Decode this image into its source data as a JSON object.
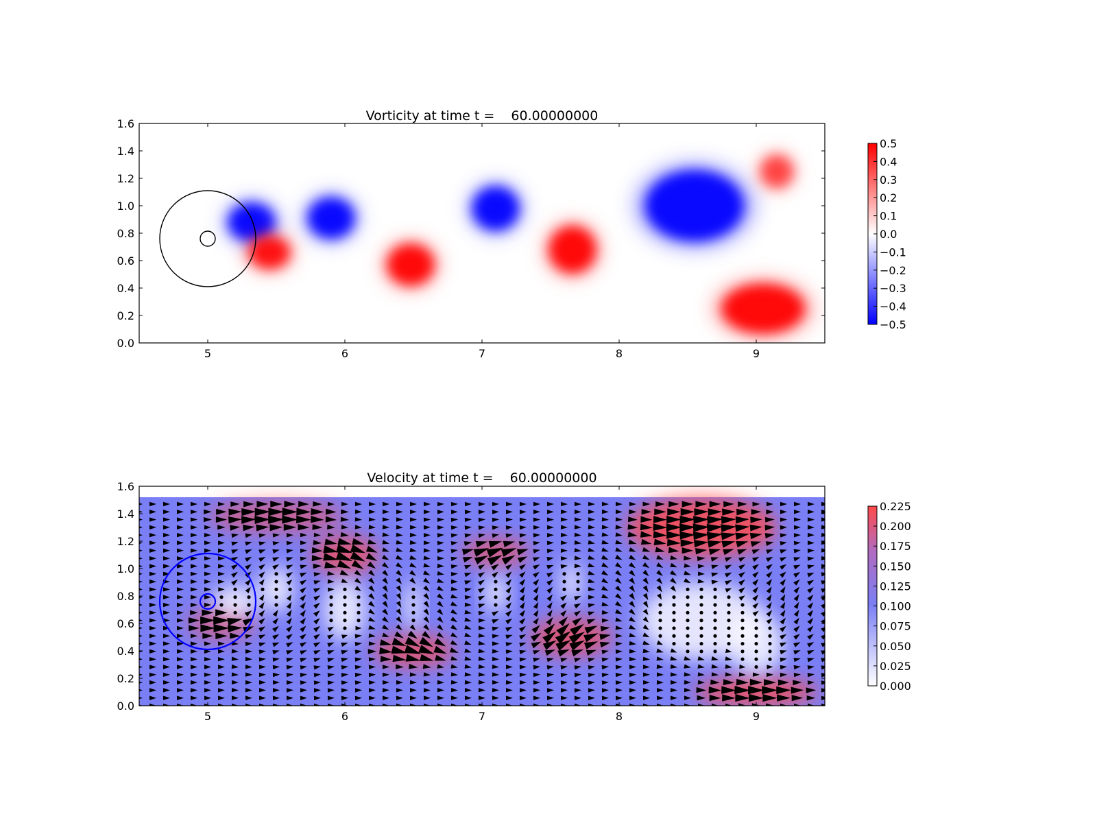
{
  "chart_data": [
    {
      "type": "heatmap",
      "title": "Vorticity at time t =    60.00000000",
      "xlim": [
        4.5,
        9.5
      ],
      "ylim": [
        0.0,
        1.6
      ],
      "xticks": [
        "5",
        "6",
        "7",
        "8",
        "9"
      ],
      "yticks": [
        "0.0",
        "0.2",
        "0.4",
        "0.6",
        "0.8",
        "1.0",
        "1.2",
        "1.4",
        "1.6"
      ],
      "colorbar": {
        "range": [
          -0.5,
          0.5
        ],
        "ticks": [
          "0.5",
          "0.4",
          "0.3",
          "0.2",
          "0.1",
          "0.0",
          "−0.1",
          "−0.2",
          "−0.3",
          "−0.4",
          "−0.5"
        ],
        "colormap": "bwr",
        "low_color": "#0000ff",
        "mid_color": "#ffffff",
        "high_color": "#ff0000"
      },
      "vortices": [
        {
          "x": 5.32,
          "y": 0.88,
          "sign": -1,
          "strength": 1.0,
          "rx": 0.17,
          "ry": 0.14
        },
        {
          "x": 5.45,
          "y": 0.66,
          "sign": 1,
          "strength": 0.95,
          "rx": 0.15,
          "ry": 0.12
        },
        {
          "x": 5.9,
          "y": 0.91,
          "sign": -1,
          "strength": 1.0,
          "rx": 0.17,
          "ry": 0.15
        },
        {
          "x": 6.48,
          "y": 0.57,
          "sign": 1,
          "strength": 1.0,
          "rx": 0.17,
          "ry": 0.15
        },
        {
          "x": 7.1,
          "y": 0.98,
          "sign": -1,
          "strength": 1.0,
          "rx": 0.17,
          "ry": 0.16
        },
        {
          "x": 7.66,
          "y": 0.68,
          "sign": 1,
          "strength": 1.0,
          "rx": 0.17,
          "ry": 0.17
        },
        {
          "x": 8.55,
          "y": 1.0,
          "sign": -1,
          "strength": 1.0,
          "rx": 0.36,
          "ry": 0.26
        },
        {
          "x": 9.05,
          "y": 0.25,
          "sign": 1,
          "strength": 1.0,
          "rx": 0.3,
          "ry": 0.18
        },
        {
          "x": 9.15,
          "y": 1.25,
          "sign": 1,
          "strength": 0.7,
          "rx": 0.12,
          "ry": 0.12
        }
      ],
      "circles": [
        {
          "cx": 5.0,
          "cy": 0.76,
          "r": 0.35,
          "color": "#000000"
        },
        {
          "cx": 5.0,
          "cy": 0.76,
          "r": 0.055,
          "color": "#000000"
        }
      ]
    },
    {
      "type": "heatmap",
      "title": "Velocity at time t =    60.00000000",
      "xlim": [
        4.5,
        9.5
      ],
      "ylim": [
        0.0,
        1.6
      ],
      "xticks": [
        "5",
        "6",
        "7",
        "8",
        "9"
      ],
      "yticks": [
        "0.0",
        "0.2",
        "0.4",
        "0.6",
        "0.8",
        "1.0",
        "1.2",
        "1.4",
        "1.6"
      ],
      "field_top": 1.52,
      "colorbar": {
        "range": [
          0.0,
          0.225
        ],
        "ticks": [
          "0.225",
          "0.200",
          "0.175",
          "0.150",
          "0.125",
          "0.100",
          "0.075",
          "0.050",
          "0.025",
          "0.000"
        ],
        "colormap": "white-blue-red",
        "low_color": "#ffffff",
        "mid_color": "#7b7ff5",
        "high_color": "#ff4a4a"
      },
      "quiver": {
        "rows": 27,
        "cols": 51,
        "color": "#000000"
      },
      "speed_blobs": [
        {
          "x": 5.5,
          "y": 1.38,
          "rx": 0.5,
          "ry": 0.12,
          "level": 0.15
        },
        {
          "x": 6.0,
          "y": 1.1,
          "rx": 0.25,
          "ry": 0.14,
          "level": 0.19
        },
        {
          "x": 7.1,
          "y": 1.12,
          "rx": 0.25,
          "ry": 0.1,
          "level": 0.18
        },
        {
          "x": 8.6,
          "y": 1.3,
          "rx": 0.55,
          "ry": 0.22,
          "level": 0.225
        },
        {
          "x": 6.5,
          "y": 0.4,
          "rx": 0.3,
          "ry": 0.12,
          "level": 0.19
        },
        {
          "x": 7.65,
          "y": 0.5,
          "rx": 0.3,
          "ry": 0.14,
          "level": 0.19
        },
        {
          "x": 9.0,
          "y": 0.1,
          "rx": 0.45,
          "ry": 0.1,
          "level": 0.225
        },
        {
          "x": 5.1,
          "y": 0.6,
          "rx": 0.25,
          "ry": 0.12,
          "level": 0.15
        }
      ],
      "calm_zones": [
        {
          "x": 5.2,
          "y": 0.76,
          "rx": 0.17,
          "ry": 0.12
        },
        {
          "x": 5.5,
          "y": 0.85,
          "rx": 0.12,
          "ry": 0.16
        },
        {
          "x": 6.0,
          "y": 0.7,
          "rx": 0.15,
          "ry": 0.22
        },
        {
          "x": 6.5,
          "y": 0.73,
          "rx": 0.06,
          "ry": 0.18
        },
        {
          "x": 7.1,
          "y": 0.82,
          "rx": 0.08,
          "ry": 0.14
        },
        {
          "x": 7.65,
          "y": 0.9,
          "rx": 0.07,
          "ry": 0.15
        },
        {
          "x": 8.6,
          "y": 0.62,
          "rx": 0.45,
          "ry": 0.28
        },
        {
          "x": 9.0,
          "y": 0.45,
          "rx": 0.2,
          "ry": 0.22
        }
      ],
      "circles": [
        {
          "cx": 5.0,
          "cy": 0.76,
          "r": 0.35,
          "color": "#0000ff"
        },
        {
          "cx": 5.0,
          "cy": 0.76,
          "r": 0.055,
          "color": "#0000ff"
        }
      ]
    }
  ]
}
